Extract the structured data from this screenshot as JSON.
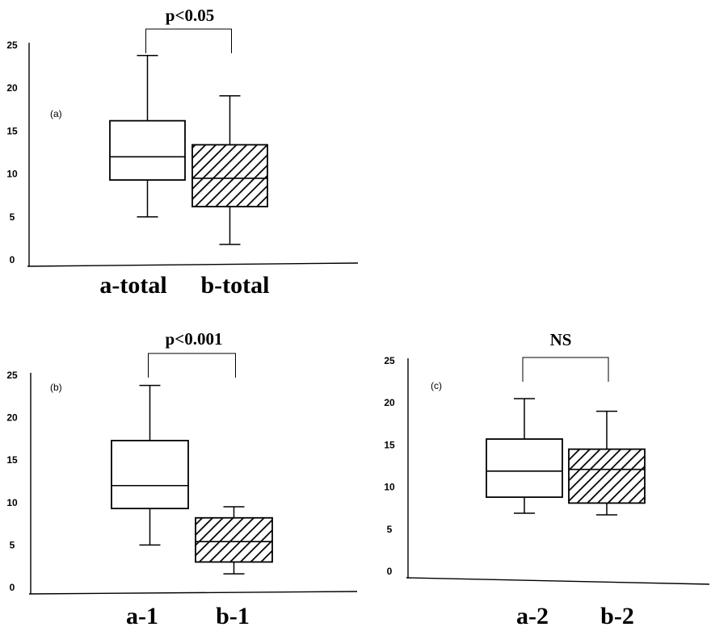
{
  "chart_data": [
    {
      "type": "box",
      "panel": "(a)",
      "significance": "p<0.05",
      "ylim": [
        0,
        25
      ],
      "yticks": [
        "0",
        "5",
        "10",
        "15",
        "20",
        "25"
      ],
      "categories": [
        "a-total",
        "b-total"
      ],
      "boxes": [
        {
          "category": "a-total",
          "min": 5,
          "q1": 9.3,
          "median": 12,
          "q3": 16.2,
          "max": 23.8,
          "pattern": "plain"
        },
        {
          "category": "b-total",
          "min": 1.8,
          "q1": 6.2,
          "median": 9.5,
          "q3": 13.4,
          "max": 19.1,
          "pattern": "hatched"
        }
      ]
    },
    {
      "type": "box",
      "panel": "(b)",
      "significance": "p<0.001",
      "ylim": [
        0,
        25
      ],
      "yticks": [
        "0",
        "5",
        "10",
        "15",
        "20",
        "25"
      ],
      "categories": [
        "a-1",
        "b-1"
      ],
      "boxes": [
        {
          "category": "a-1",
          "min": 5,
          "q1": 9.3,
          "median": 12,
          "q3": 17.3,
          "max": 23.8,
          "pattern": "plain"
        },
        {
          "category": "b-1",
          "min": 1.6,
          "q1": 3,
          "median": 5.4,
          "q3": 8.2,
          "max": 9.5,
          "pattern": "hatched"
        }
      ]
    },
    {
      "type": "box",
      "panel": "(c)",
      "significance": "NS",
      "ylim": [
        0,
        25
      ],
      "yticks": [
        "0",
        "5",
        "10",
        "15",
        "20",
        "25"
      ],
      "categories": [
        "a-2",
        "b-2"
      ],
      "boxes": [
        {
          "category": "a-2",
          "min": 6.9,
          "q1": 8.8,
          "median": 11.9,
          "q3": 15.7,
          "max": 20.5,
          "pattern": "plain"
        },
        {
          "category": "b-2",
          "min": 6.7,
          "q1": 8.1,
          "median": 12.1,
          "q3": 14.5,
          "max": 19,
          "pattern": "hatched"
        }
      ]
    }
  ]
}
